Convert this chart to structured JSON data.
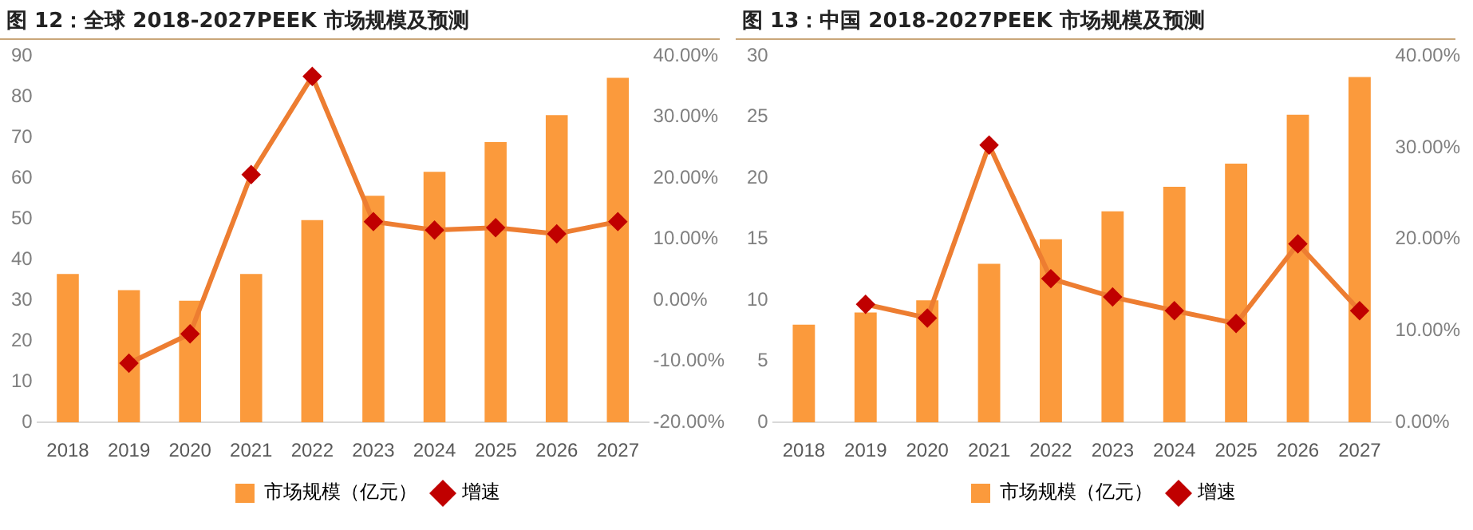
{
  "chart_data": [
    {
      "type": "bar",
      "title": "图 12：全球 2018-2027PEEK 市场规模及预测",
      "categories": [
        "2018",
        "2019",
        "2020",
        "2021",
        "2022",
        "2023",
        "2024",
        "2025",
        "2026",
        "2027"
      ],
      "series": [
        {
          "name": "市场规模（亿元）",
          "color": "#fb9a3c",
          "values": [
            36.5,
            32.5,
            29.9,
            36.5,
            49.7,
            55.7,
            61.6,
            68.9,
            75.5,
            84.7
          ]
        },
        {
          "name": "增速",
          "type": "line",
          "axis": "y2",
          "color": "#ed7d31",
          "values": [
            null,
            -10.3,
            -5.5,
            20.6,
            36.7,
            12.9,
            11.5,
            11.9,
            10.9,
            12.9
          ]
        }
      ],
      "ylim": [
        0,
        90
      ],
      "yticks": [
        0,
        10,
        20,
        30,
        40,
        50,
        60,
        70,
        80,
        90
      ],
      "y2lim": [
        -20,
        40
      ],
      "y2ticks": [
        {
          "value": -20,
          "label": "-20.00%"
        },
        {
          "value": -10,
          "label": "-10.00%"
        },
        {
          "value": 0,
          "label": "0.00%"
        },
        {
          "value": 10,
          "label": "10.00%"
        },
        {
          "value": 20,
          "label": "20.00%"
        },
        {
          "value": 30,
          "label": "30.00%"
        },
        {
          "value": 40,
          "label": "40.00%"
        }
      ],
      "grid": false,
      "legend": "bottom",
      "marker": "diamond"
    },
    {
      "type": "bar",
      "title": "图 13：中国 2018-2027PEEK 市场规模及预测",
      "categories": [
        "2018",
        "2019",
        "2020",
        "2021",
        "2022",
        "2023",
        "2024",
        "2025",
        "2026",
        "2027"
      ],
      "series": [
        {
          "name": "市场规模（亿元）",
          "color": "#fb9a3c",
          "values": [
            8.0,
            9.0,
            10.0,
            13.0,
            15.0,
            17.3,
            19.3,
            21.2,
            25.2,
            28.3
          ]
        },
        {
          "name": "增速",
          "type": "line",
          "axis": "y2",
          "color": "#ed7d31",
          "values": [
            null,
            12.9,
            11.4,
            30.3,
            15.7,
            13.7,
            12.2,
            10.8,
            19.5,
            12.2
          ]
        }
      ],
      "ylim": [
        0,
        30
      ],
      "yticks": [
        0,
        5,
        10,
        15,
        20,
        25,
        30
      ],
      "y2lim": [
        0,
        40
      ],
      "y2ticks": [
        {
          "value": 0,
          "label": "0.00%"
        },
        {
          "value": 10,
          "label": "10.00%"
        },
        {
          "value": 20,
          "label": "20.00%"
        },
        {
          "value": 30,
          "label": "30.00%"
        },
        {
          "value": 40,
          "label": "40.00%"
        }
      ],
      "grid": false,
      "legend": "bottom",
      "marker": "diamond"
    }
  ]
}
